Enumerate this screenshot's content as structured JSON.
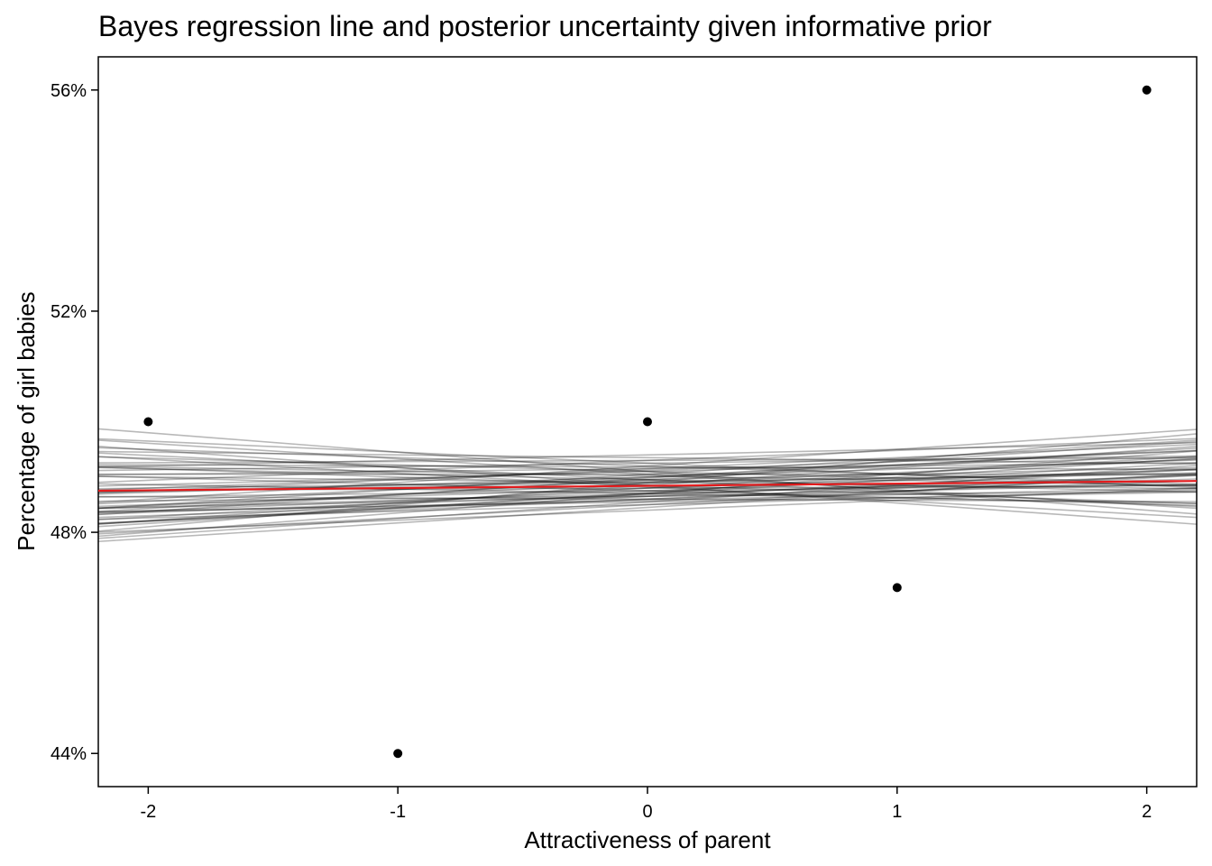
{
  "chart_data": {
    "type": "scatter",
    "title": "Bayes regression line and posterior uncertainty given informative prior",
    "xlabel": "Attractiveness of parent",
    "ylabel": "Percentage of girl babies",
    "xlim": [
      -2.2,
      2.2
    ],
    "ylim": [
      43.4,
      56.6
    ],
    "x_ticks": [
      -2,
      -1,
      0,
      1,
      2
    ],
    "x_tick_labels": [
      "-2",
      "-1",
      "0",
      "1",
      "2"
    ],
    "y_ticks": [
      44,
      48,
      52,
      56
    ],
    "y_tick_labels": [
      "44%",
      "48%",
      "52%",
      "56%"
    ],
    "grid": false,
    "points": {
      "x": [
        -2,
        -1,
        0,
        1,
        2
      ],
      "y": [
        50,
        44,
        50,
        47,
        56
      ],
      "color": "#000000"
    },
    "regression_line": {
      "intercept": 48.84,
      "slope": 0.04,
      "color": "#e41a1c"
    },
    "posterior_draws": {
      "color": "#000000",
      "draws": [
        [
          48.95,
          -0.1
        ],
        [
          49.1,
          0.12
        ],
        [
          48.7,
          0.25
        ],
        [
          48.6,
          0.2
        ],
        [
          49.3,
          0.18
        ],
        [
          48.75,
          0.05
        ],
        [
          48.9,
          -0.05
        ],
        [
          48.55,
          0.3
        ],
        [
          49.05,
          0.0
        ],
        [
          48.8,
          0.15
        ],
        [
          49.25,
          -0.2
        ],
        [
          48.65,
          0.1
        ],
        [
          49.0,
          0.22
        ],
        [
          48.85,
          -0.15
        ],
        [
          48.45,
          0.28
        ],
        [
          49.4,
          0.1
        ],
        [
          48.7,
          -0.08
        ],
        [
          49.15,
          0.05
        ],
        [
          48.95,
          0.26
        ],
        [
          48.6,
          -0.02
        ],
        [
          49.2,
          0.3
        ],
        [
          48.5,
          0.12
        ],
        [
          48.9,
          0.08
        ],
        [
          49.05,
          -0.28
        ],
        [
          48.75,
          0.18
        ],
        [
          48.85,
          0.32
        ],
        [
          49.35,
          -0.05
        ],
        [
          48.65,
          0.22
        ],
        [
          49.1,
          -0.12
        ],
        [
          48.8,
          0.02
        ],
        [
          48.4,
          0.18
        ],
        [
          49.0,
          0.14
        ],
        [
          48.95,
          -0.22
        ],
        [
          48.7,
          0.35
        ],
        [
          49.25,
          0.06
        ],
        [
          48.55,
          0.08
        ],
        [
          49.15,
          0.2
        ],
        [
          48.85,
          -0.32
        ],
        [
          48.6,
          0.15
        ],
        [
          49.05,
          0.28
        ],
        [
          48.9,
          0.4
        ],
        [
          48.75,
          -0.12
        ],
        [
          49.3,
          0.02
        ],
        [
          48.5,
          0.24
        ],
        [
          48.95,
          0.1
        ],
        [
          49.1,
          -0.35
        ],
        [
          48.65,
          0.04
        ],
        [
          48.8,
          0.26
        ],
        [
          49.2,
          -0.15
        ],
        [
          48.7,
          0.12
        ],
        [
          48.98,
          0.3
        ],
        [
          48.82,
          -0.25
        ],
        [
          49.12,
          0.16
        ],
        [
          48.58,
          0.1
        ],
        [
          48.88,
          0.2
        ],
        [
          49.02,
          -0.08
        ],
        [
          48.72,
          0.28
        ],
        [
          48.92,
          0.06
        ],
        [
          49.18,
          -0.02
        ],
        [
          48.68,
          0.16
        ]
      ]
    }
  }
}
